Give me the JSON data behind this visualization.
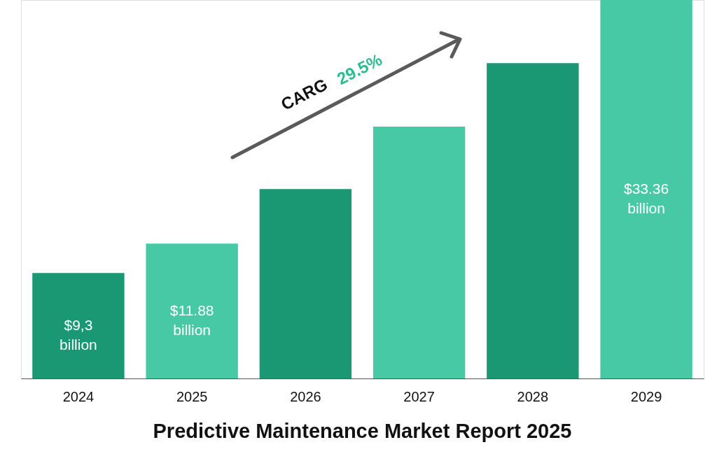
{
  "chart_data": {
    "type": "bar",
    "title": "Predictive Maintenance Market Report 2025",
    "categories": [
      "2024",
      "2025",
      "2026",
      "2027",
      "2028",
      "2029"
    ],
    "values": [
      9.3,
      11.88,
      16.7,
      22.2,
      27.8,
      33.36
    ],
    "colors": [
      "#1a9873",
      "#48c9a5",
      "#1a9873",
      "#48c9a5",
      "#1a9873",
      "#48c9a5"
    ],
    "value_labels": [
      "$9,3 billion",
      "$11.88 billion",
      null,
      null,
      null,
      "$33.36 billion"
    ],
    "annotations": [
      "CARG",
      "29.5%"
    ]
  }
}
